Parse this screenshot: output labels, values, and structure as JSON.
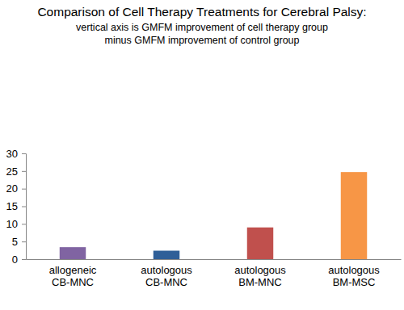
{
  "chart_data": {
    "type": "bar",
    "title": "Comparison of Cell Therapy Treatments for Cerebral Palsy:",
    "subtitle": [
      "vertical axis is GMFM improvement of cell therapy group",
      "minus GMFM improvement of control group"
    ],
    "categories": [
      "allogeneic CB-MNC",
      "autologous CB-MNC",
      "autologous BM-MNC",
      "autologous BM-MSC"
    ],
    "values": [
      3.4,
      2.4,
      9.0,
      24.7
    ],
    "colors": [
      "#8064a2",
      "#2f5f98",
      "#c0504d",
      "#f79646"
    ],
    "ylim": [
      0,
      30
    ],
    "yticks": [
      0,
      5,
      10,
      15,
      20,
      25,
      30
    ],
    "grid": false
  }
}
